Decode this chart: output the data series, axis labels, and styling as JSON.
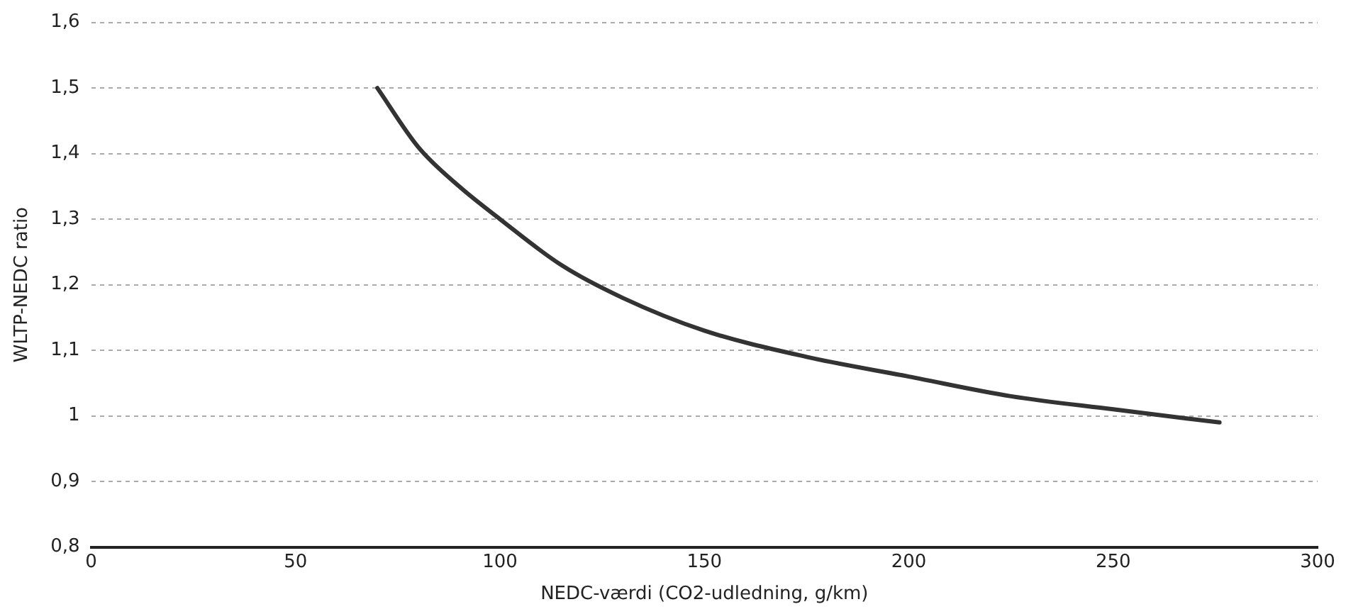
{
  "chart_data": {
    "type": "line",
    "xlabel": "NEDC-værdi (CO2-udledning, g/km)",
    "ylabel": "WLTP-NEDC ratio",
    "x": [
      70,
      80,
      90,
      100,
      115,
      130,
      150,
      175,
      200,
      225,
      250,
      276
    ],
    "series": [
      {
        "color": "#333333",
        "values": [
          1.5,
          1.41,
          1.35,
          1.3,
          1.23,
          1.18,
          1.13,
          1.09,
          1.06,
          1.03,
          1.01,
          0.99
        ]
      }
    ],
    "xlim": [
      0,
      300
    ],
    "xticks": [
      0,
      50,
      100,
      150,
      200,
      250,
      300
    ],
    "ylim": [
      0.8,
      1.6
    ],
    "yticks": [
      {
        "value": 0.8,
        "label": "0,8"
      },
      {
        "value": 0.9,
        "label": "0,9"
      },
      {
        "value": 1,
        "label": "1"
      },
      {
        "value": 1.1,
        "label": "1,1"
      },
      {
        "value": 1.2,
        "label": "1,2"
      },
      {
        "value": 1.3,
        "label": "1,3"
      },
      {
        "value": 1.4,
        "label": "1,4"
      },
      {
        "value": 1.5,
        "label": "1,5"
      },
      {
        "value": 1.6,
        "label": "1,6"
      }
    ],
    "grid": "y",
    "legend": false,
    "marker": "none",
    "line_style": "solid"
  }
}
